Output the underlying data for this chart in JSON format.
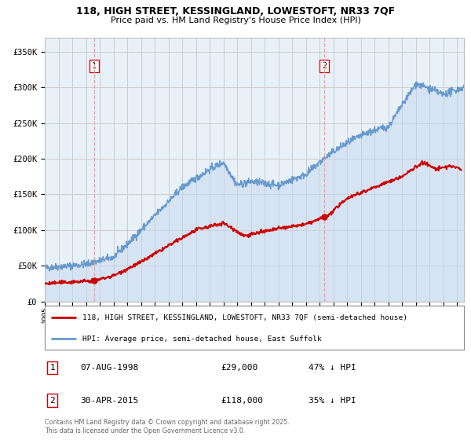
{
  "title_line1": "118, HIGH STREET, KESSINGLAND, LOWESTOFT, NR33 7QF",
  "title_line2": "Price paid vs. HM Land Registry's House Price Index (HPI)",
  "background_color": "#ffffff",
  "plot_bg_color": "#e8f0f8",
  "grid_color": "#cccccc",
  "hpi_color": "#6699cc",
  "hpi_fill_color": "#c5d8ee",
  "price_color": "#cc0000",
  "marker_color": "#cc0000",
  "dashed_line_color": "#ff9999",
  "ylim": [
    0,
    370000
  ],
  "yticks": [
    0,
    50000,
    100000,
    150000,
    200000,
    250000,
    300000,
    350000
  ],
  "ytick_labels": [
    "£0",
    "£50K",
    "£100K",
    "£150K",
    "£200K",
    "£250K",
    "£300K",
    "£350K"
  ],
  "annotation1": {
    "label": "1",
    "date_str": "07-AUG-1998",
    "price": 29000,
    "hpi_pct": "47% ↓ HPI",
    "x_year": 1998.6
  },
  "annotation2": {
    "label": "2",
    "date_str": "30-APR-2015",
    "price": 118000,
    "hpi_pct": "35% ↓ HPI",
    "x_year": 2015.33
  },
  "legend_label1": "118, HIGH STREET, KESSINGLAND, LOWESTOFT, NR33 7QF (semi-detached house)",
  "legend_label2": "HPI: Average price, semi-detached house, East Suffolk",
  "footer": "Contains HM Land Registry data © Crown copyright and database right 2025.\nThis data is licensed under the Open Government Licence v3.0.",
  "xmin": 1995.0,
  "xmax": 2025.5
}
